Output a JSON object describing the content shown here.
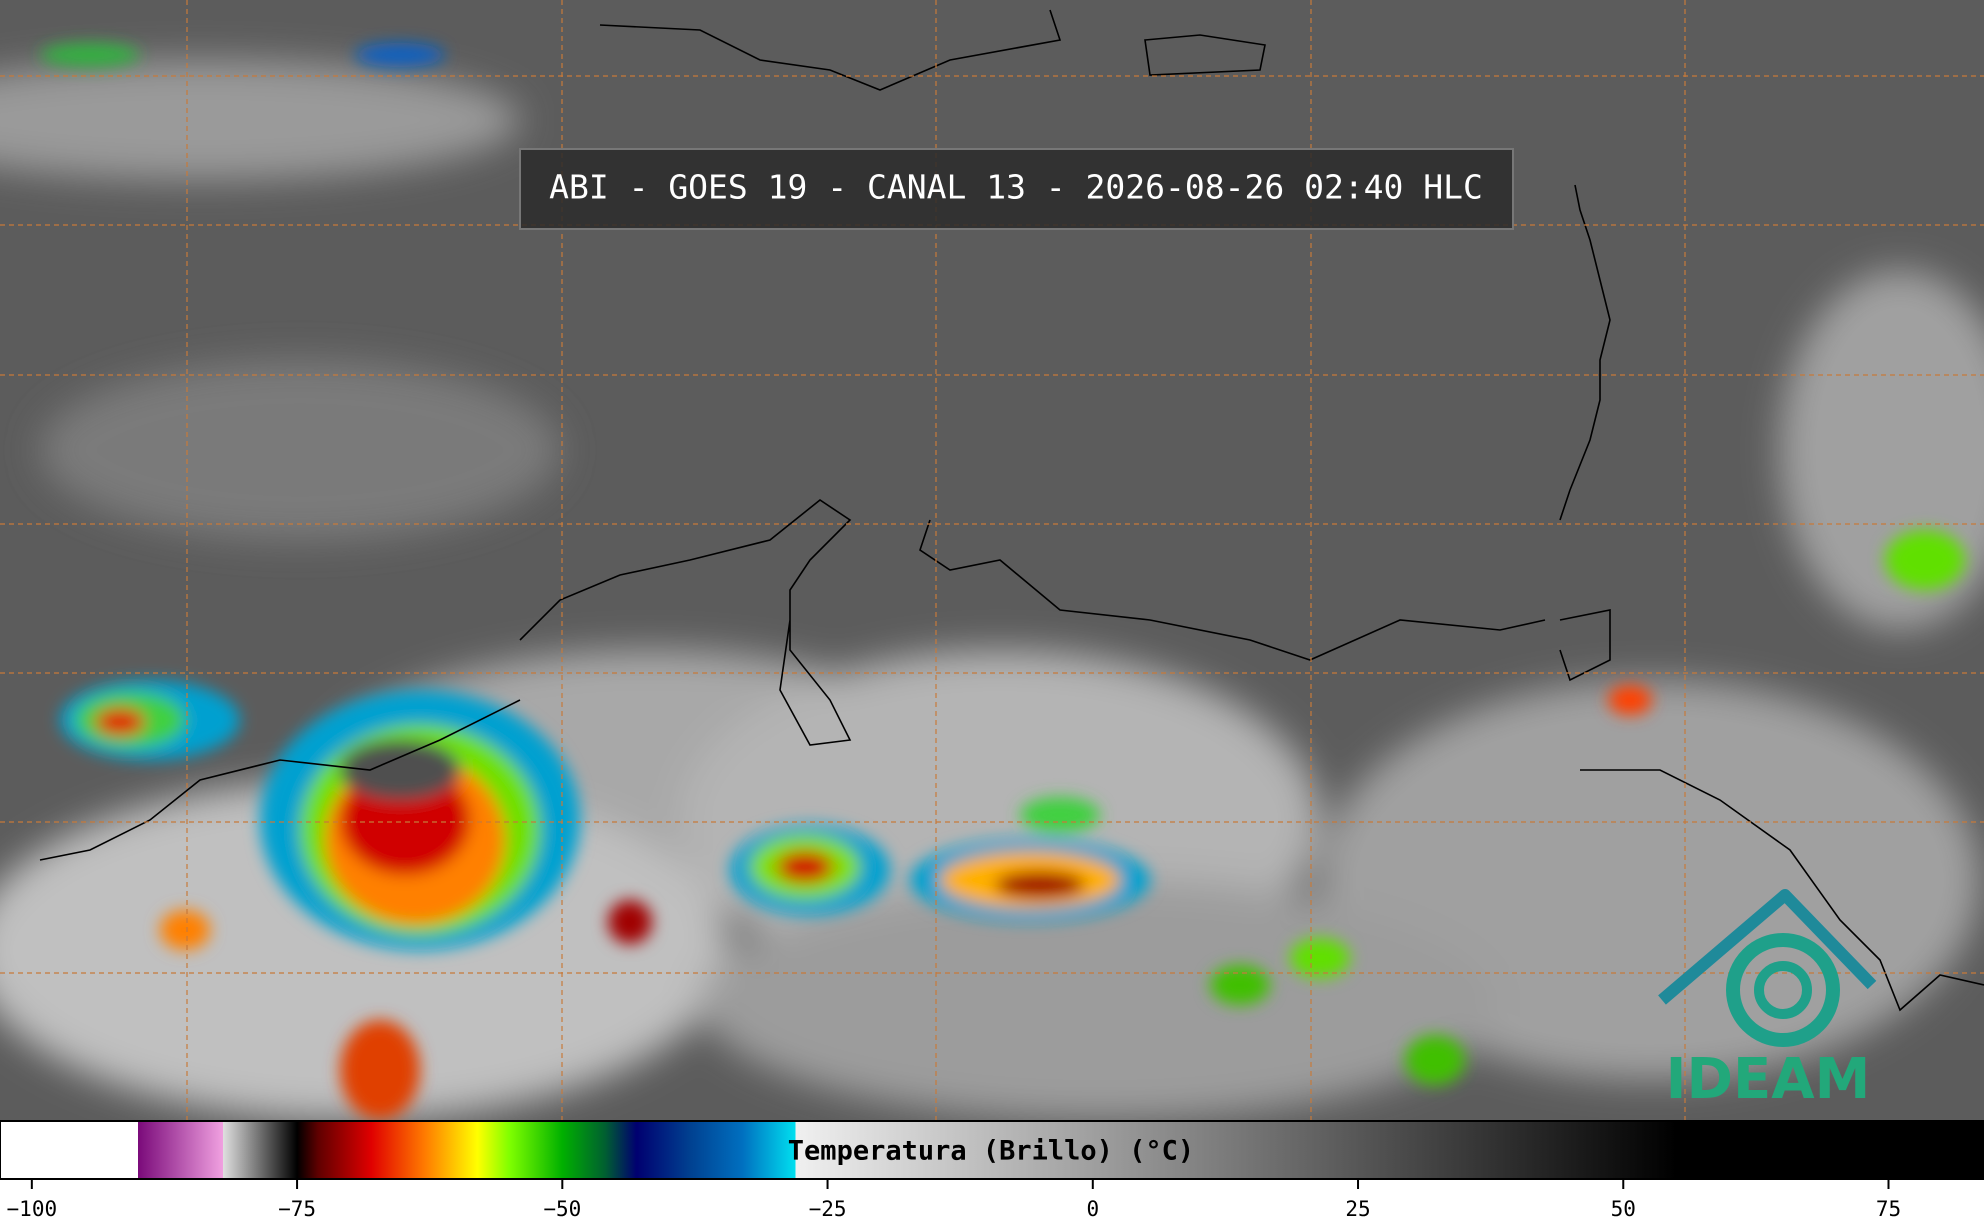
{
  "header": {
    "title": "ABI - GOES 19 - CANAL 13 - 2026-08-26 02:40 HLC"
  },
  "logo": {
    "text": "IDEAM"
  },
  "colorbar": {
    "label": "Temperatura (Brillo) (°C)",
    "lim": [
      -103,
      84
    ],
    "ticks": [
      {
        "value": -100,
        "label": "−100"
      },
      {
        "value": -75,
        "label": "−75"
      },
      {
        "value": -50,
        "label": "−50"
      },
      {
        "value": -25,
        "label": "−25"
      },
      0,
      25,
      50,
      75
    ],
    "colorscale": [
      [
        -103,
        "#ffffff"
      ],
      [
        -90,
        "#ffffff"
      ],
      [
        -90,
        "#7a0a7a"
      ],
      [
        -82,
        "#f0a0e0"
      ],
      [
        -82,
        "#e0e0e0"
      ],
      [
        -77,
        "#404040"
      ],
      [
        -75,
        "#000000"
      ],
      [
        -73,
        "#600000"
      ],
      [
        -68,
        "#e00000"
      ],
      [
        -63,
        "#ff7a00"
      ],
      [
        -58,
        "#ffff00"
      ],
      [
        -55,
        "#80ff00"
      ],
      [
        -50,
        "#00b000"
      ],
      [
        -46,
        "#006030"
      ],
      [
        -43,
        "#000070"
      ],
      [
        -38,
        "#004090"
      ],
      [
        -33,
        "#0070c0"
      ],
      [
        -28,
        "#00e0f0"
      ],
      [
        -28,
        "#f0f0f0"
      ],
      [
        55,
        "#000000"
      ],
      [
        84,
        "#000000"
      ]
    ]
  }
}
